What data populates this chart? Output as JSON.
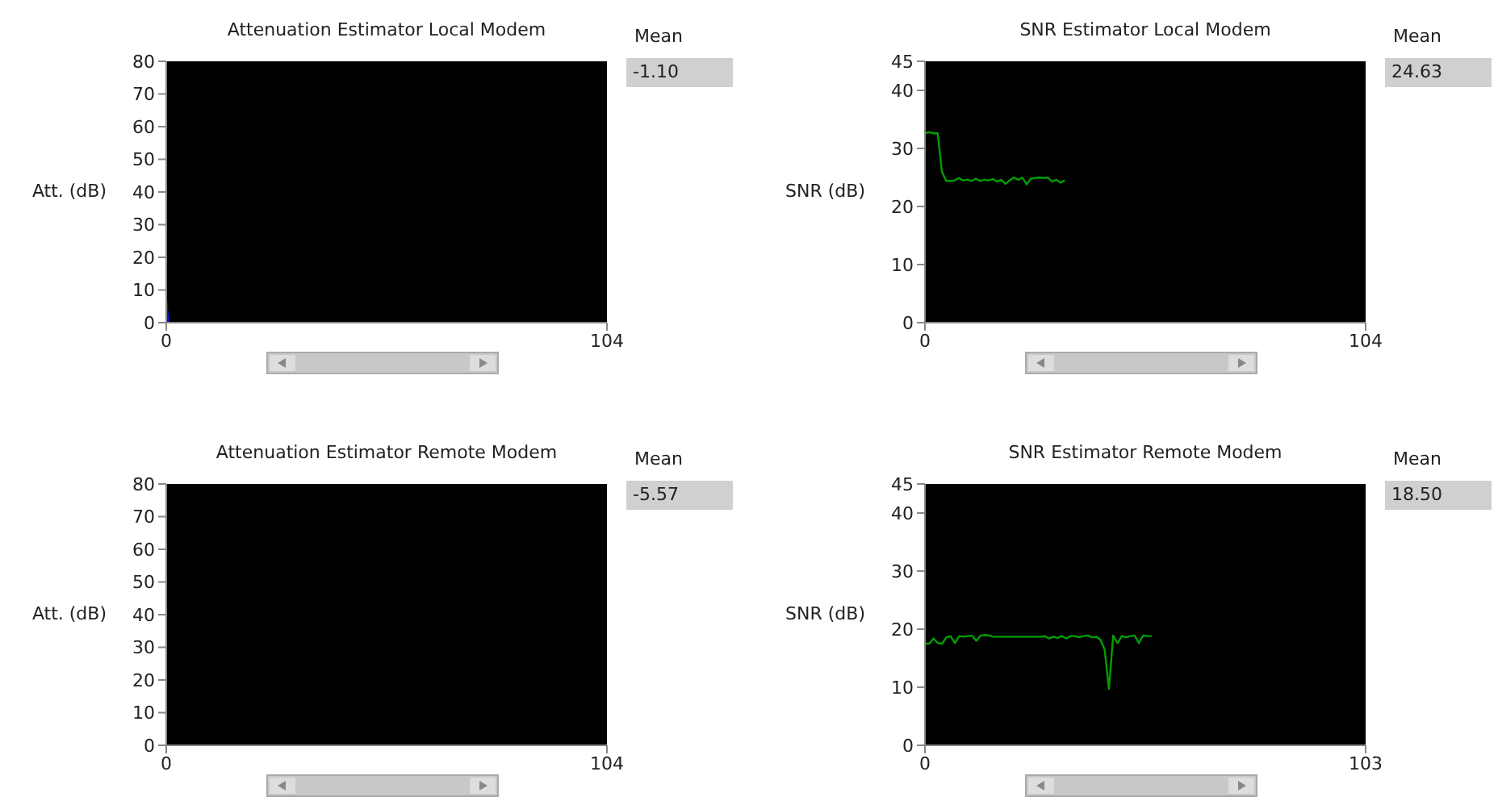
{
  "chart_data": [
    {
      "type": "line",
      "title": "Attenuation Estimator Local Modem",
      "ylabel": "Att. (dB)",
      "annotations": [
        "Mean",
        "-1.10"
      ],
      "xlim": [
        0,
        104
      ],
      "xticks": [
        0,
        104
      ],
      "ylim": [
        0,
        80
      ],
      "yticks": [
        0,
        10,
        20,
        30,
        40,
        50,
        60,
        70,
        80
      ],
      "grid": false,
      "legend": false,
      "x": [
        0,
        0.5
      ],
      "series": [
        {
          "color": "#1010ff",
          "values": [
            7,
            0
          ]
        }
      ]
    },
    {
      "type": "line",
      "title": "SNR Estimator Local Modem",
      "ylabel": "SNR (dB)",
      "annotations": [
        "Mean",
        "24.63"
      ],
      "xlim": [
        0,
        104
      ],
      "xticks": [
        0,
        104
      ],
      "ylim": [
        0,
        45
      ],
      "yticks": [
        0,
        10,
        20,
        30,
        40,
        45
      ],
      "grid": false,
      "legend": false,
      "x": [
        0,
        1,
        2,
        3,
        4,
        5,
        6,
        7,
        8,
        9,
        10,
        11,
        12,
        13,
        14,
        15,
        16,
        17,
        18,
        19,
        20,
        21,
        22,
        23,
        24,
        25,
        26,
        27,
        28,
        29,
        30,
        31,
        32,
        33
      ],
      "series": [
        {
          "color": "#00a000",
          "values": [
            32.6,
            32.8,
            32.6,
            32.6,
            26,
            24.4,
            24.4,
            24.5,
            24.9,
            24.5,
            24.6,
            24.4,
            24.8,
            24.4,
            24.6,
            24.5,
            24.7,
            24.3,
            24.6,
            23.9,
            24.5,
            25,
            24.6,
            25,
            23.8,
            24.8,
            24.9,
            25,
            24.9,
            25,
            24.3,
            24.6,
            24.1,
            24.5
          ]
        }
      ]
    },
    {
      "type": "line",
      "title": "Attenuation Estimator Remote Modem",
      "ylabel": "Att. (dB)",
      "annotations": [
        "Mean",
        "-5.57"
      ],
      "xlim": [
        0,
        104
      ],
      "xticks": [
        0,
        104
      ],
      "ylim": [
        0,
        80
      ],
      "yticks": [
        0,
        10,
        20,
        30,
        40,
        50,
        60,
        70,
        80
      ],
      "grid": false,
      "legend": false
    },
    {
      "type": "line",
      "title": "SNR Estimator Remote Modem",
      "ylabel": "SNR (dB)",
      "annotations": [
        "Mean",
        "18.50"
      ],
      "xlim": [
        0,
        103
      ],
      "xticks": [
        0,
        103
      ],
      "ylim": [
        0,
        45
      ],
      "yticks": [
        0,
        10,
        20,
        30,
        40,
        45
      ],
      "grid": false,
      "legend": false,
      "x": [
        0,
        1,
        2,
        3,
        4,
        5,
        6,
        7,
        8,
        9,
        10,
        11,
        12,
        13,
        14,
        15,
        16,
        17,
        18,
        19,
        20,
        21,
        22,
        23,
        24,
        25,
        26,
        27,
        28,
        29,
        30,
        31,
        32,
        33,
        34,
        35,
        36,
        37,
        38,
        39,
        40,
        41,
        42,
        43,
        44,
        45,
        46,
        47,
        48,
        49,
        50,
        51,
        52,
        53
      ],
      "series": [
        {
          "color": "#00a000",
          "values": [
            17.5,
            17.5,
            18.4,
            17.6,
            17.5,
            18.6,
            18.8,
            17.6,
            18.8,
            18.7,
            18.8,
            18.9,
            18,
            18.9,
            19,
            18.9,
            18.7,
            18.7,
            18.7,
            18.7,
            18.7,
            18.7,
            18.7,
            18.7,
            18.7,
            18.7,
            18.7,
            18.7,
            18.8,
            18.4,
            18.7,
            18.5,
            18.8,
            18.4,
            18.8,
            18.8,
            18.6,
            18.8,
            18.9,
            18.6,
            18.7,
            18.2,
            16.5,
            9.7,
            18.9,
            17.6,
            18.8,
            18.6,
            18.8,
            18.9,
            17.6,
            18.9,
            18.8,
            18.8
          ]
        }
      ]
    }
  ]
}
